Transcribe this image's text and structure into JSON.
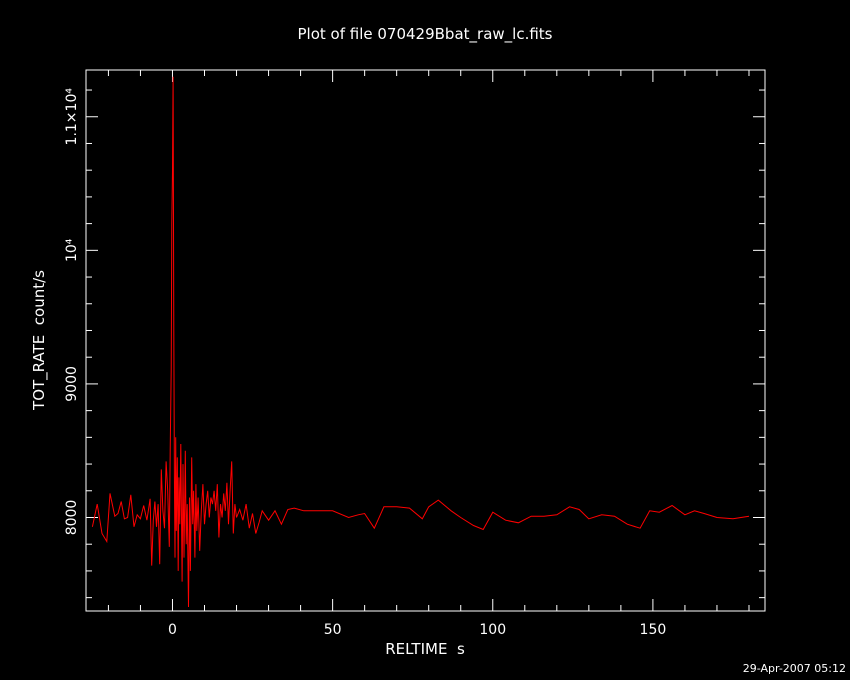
{
  "chart_data": {
    "type": "line",
    "title": "Plot of file 070429Bbat_raw_lc.fits",
    "xlabel": "RELTIME  s",
    "ylabel": "TOT_RATE  count/s",
    "xlim": [
      -27,
      185
    ],
    "ylim": [
      7300,
      11350
    ],
    "x_ticks": [
      0,
      50,
      100,
      150
    ],
    "x_tick_labels": [
      "0",
      "50",
      "100",
      "150"
    ],
    "y_ticks": [
      8000,
      9000,
      10000,
      11000
    ],
    "y_tick_labels": [
      "8000",
      "9000",
      "10⁴",
      "1.1×10⁴"
    ],
    "line_color": "#ff0000",
    "series": [
      {
        "x": [
          -25,
          -23.5,
          -22,
          -20.5,
          -19.5,
          -18,
          -17,
          -16,
          -15,
          -14,
          -13,
          -12,
          -11,
          -10,
          -9,
          -8,
          -7,
          -6.5,
          -6,
          -5.5,
          -5,
          -4.5,
          -4,
          -3.5,
          -3,
          -2.5,
          -2,
          -1.5,
          -1,
          -0.7,
          -0.4,
          -0.2,
          0,
          0.2,
          0.4,
          0.6,
          0.8,
          1,
          1.2,
          1.5,
          1.8,
          2,
          2.3,
          2.6,
          3,
          3.3,
          3.6,
          4,
          4.3,
          4.6,
          5,
          5.3,
          5.6,
          6,
          6.3,
          6.6,
          7,
          7.3,
          7.6,
          8,
          8.5,
          9,
          9.5,
          10,
          10.5,
          11,
          11.5,
          12,
          12.5,
          13,
          13.5,
          14,
          14.5,
          15,
          15.5,
          16,
          16.5,
          17,
          17.5,
          18,
          18.5,
          19,
          19.5,
          20,
          21,
          22,
          23,
          24,
          25,
          26,
          27,
          28,
          30,
          32,
          34,
          36,
          38,
          41,
          45,
          50,
          55,
          58,
          60,
          63,
          66,
          70,
          74,
          78,
          80,
          83,
          87,
          90,
          94,
          97,
          100,
          104,
          108,
          112,
          116,
          120,
          124,
          127,
          130,
          134,
          138,
          142,
          146,
          149,
          152,
          156,
          160,
          163,
          166,
          170,
          175,
          180
        ],
        "y": [
          7930,
          8100,
          7880,
          7820,
          8180,
          8010,
          8030,
          8120,
          7990,
          8000,
          8170,
          7930,
          8020,
          7990,
          8090,
          7980,
          8140,
          7640,
          7980,
          8120,
          7930,
          8100,
          7650,
          8360,
          8050,
          7920,
          8420,
          8200,
          7780,
          8500,
          9100,
          10200,
          10600,
          11300,
          9400,
          8300,
          7700,
          8600,
          7900,
          8450,
          7600,
          8300,
          7950,
          8550,
          7520,
          8400,
          7700,
          8500,
          7800,
          8100,
          7330,
          8150,
          7600,
          8450,
          7950,
          8200,
          7700,
          8250,
          7900,
          8150,
          7750,
          8050,
          8250,
          7950,
          8100,
          8200,
          8000,
          8150,
          8100,
          8200,
          8050,
          8250,
          7850,
          8100,
          8000,
          8180,
          8050,
          8260,
          7950,
          8200,
          8420,
          7880,
          8100,
          8000,
          8060,
          7980,
          8100,
          7920,
          8030,
          7880,
          7960,
          8050,
          7980,
          8050,
          7950,
          8060,
          8070,
          8050,
          8050,
          8050,
          8000,
          8020,
          8030,
          7920,
          8080,
          8080,
          8070,
          7990,
          8080,
          8130,
          8050,
          8000,
          7940,
          7910,
          8040,
          7980,
          7960,
          8010,
          8010,
          8020,
          8080,
          8060,
          7990,
          8020,
          8010,
          7950,
          7920,
          8050,
          8040,
          8090,
          8020,
          8050,
          8030,
          8000,
          7990,
          8010
        ]
      }
    ]
  },
  "footer": {
    "timestamp": "29-Apr-2007 05:12"
  }
}
